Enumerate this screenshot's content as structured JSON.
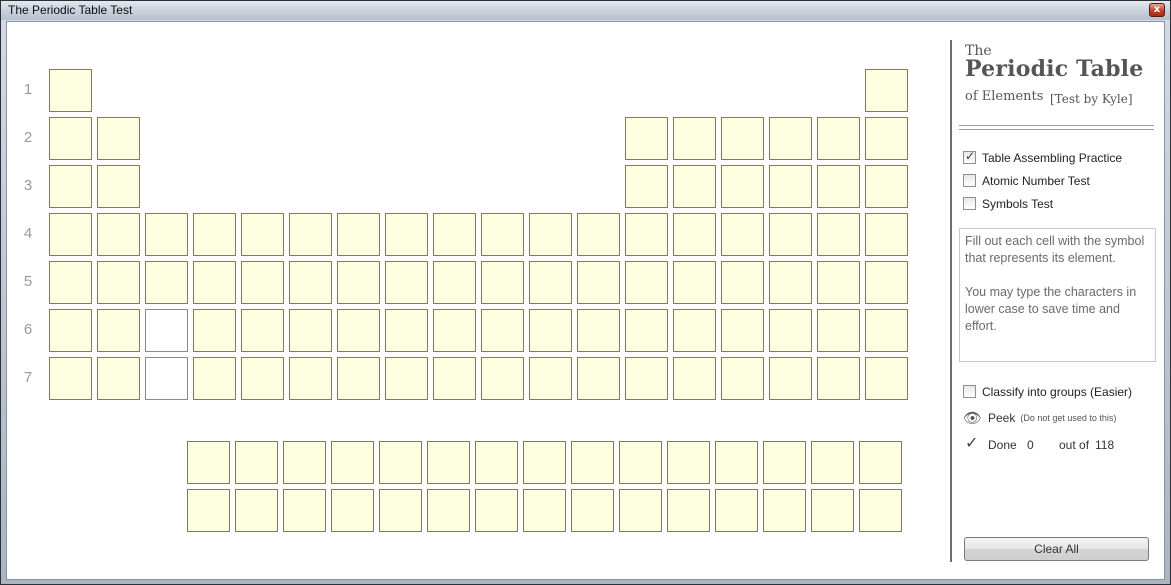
{
  "window": {
    "title": "The Periodic Table Test",
    "close_glyph": "x"
  },
  "table": {
    "row_labels": [
      "1",
      "2",
      "3",
      "4",
      "5",
      "6",
      "7"
    ],
    "layout": [
      [
        1,
        0,
        0,
        0,
        0,
        0,
        0,
        0,
        0,
        0,
        0,
        0,
        0,
        0,
        0,
        0,
        0,
        1
      ],
      [
        1,
        1,
        0,
        0,
        0,
        0,
        0,
        0,
        0,
        0,
        0,
        0,
        1,
        1,
        1,
        1,
        1,
        1
      ],
      [
        1,
        1,
        0,
        0,
        0,
        0,
        0,
        0,
        0,
        0,
        0,
        0,
        1,
        1,
        1,
        1,
        1,
        1
      ],
      [
        1,
        1,
        1,
        1,
        1,
        1,
        1,
        1,
        1,
        1,
        1,
        1,
        1,
        1,
        1,
        1,
        1,
        1
      ],
      [
        1,
        1,
        1,
        1,
        1,
        1,
        1,
        1,
        1,
        1,
        1,
        1,
        1,
        1,
        1,
        1,
        1,
        1
      ],
      [
        1,
        1,
        2,
        1,
        1,
        1,
        1,
        1,
        1,
        1,
        1,
        1,
        1,
        1,
        1,
        1,
        1,
        1
      ],
      [
        1,
        1,
        2,
        1,
        1,
        1,
        1,
        1,
        1,
        1,
        1,
        1,
        1,
        1,
        1,
        1,
        1,
        1
      ]
    ],
    "f_block_rows": 2,
    "f_block_cols": 15,
    "cell_color": "#fefee1",
    "cell_border_color": "#7d7a62"
  },
  "logo": {
    "line1": "The",
    "line2": "Periodic Table",
    "line3": "of Elements",
    "byline": "[Test by Kyle]"
  },
  "options": {
    "mode1": "Table Assembling Practice",
    "mode1_checked": true,
    "mode2": "Atomic Number Test",
    "mode2_checked": false,
    "mode3": "Symbols Test",
    "mode3_checked": false
  },
  "info": {
    "para1": "Fill out each cell with the symbol that represents its element.",
    "para2": "You may type the characters in lower case to save time and effort."
  },
  "classify": {
    "label": "Classify into groups  (Easier)",
    "checked": false
  },
  "peek": {
    "label": "Peek",
    "note": "(Do not get used to this)",
    "icon": "eye-icon"
  },
  "done": {
    "label": "Done",
    "count": "0",
    "out_of": "out of",
    "total": "118",
    "icon": "check-icon"
  },
  "clear_all": "Clear All"
}
